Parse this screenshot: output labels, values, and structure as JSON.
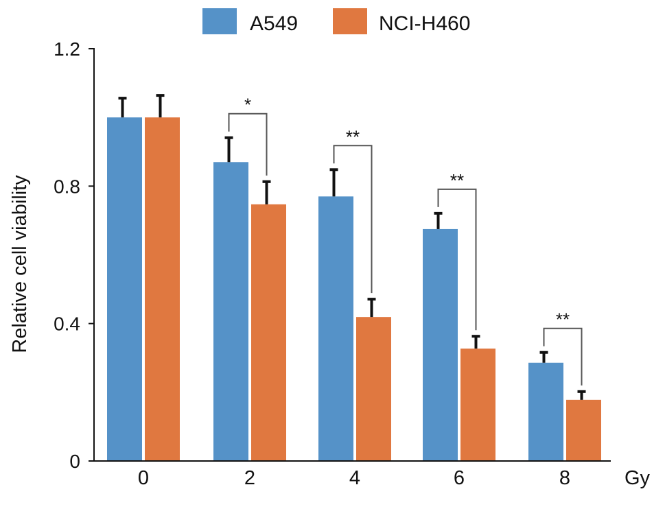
{
  "chart_data": {
    "type": "bar",
    "title": "",
    "xlabel": "Gy",
    "ylabel": "Relative cell viability",
    "categories": [
      "0",
      "2",
      "4",
      "6",
      "8"
    ],
    "ylim": [
      0,
      1.2
    ],
    "yticks": [
      "0",
      "0.4",
      "0.8",
      "1.2"
    ],
    "ytick_values": [
      0,
      0.4,
      0.8,
      1.2
    ],
    "legend_position": "top-center",
    "series": [
      {
        "name": "A549",
        "color": "#5592c8",
        "values": [
          1.0,
          0.87,
          0.77,
          0.675,
          0.286
        ],
        "errors": [
          0.058,
          0.073,
          0.08,
          0.048,
          0.032
        ]
      },
      {
        "name": "NCI-H460",
        "color": "#e07840",
        "values": [
          1.0,
          0.747,
          0.419,
          0.327,
          0.178
        ],
        "errors": [
          0.066,
          0.068,
          0.054,
          0.038,
          0.026
        ]
      }
    ],
    "significance": [
      {
        "category": "2",
        "label": "*"
      },
      {
        "category": "4",
        "label": "**"
      },
      {
        "category": "6",
        "label": "**"
      },
      {
        "category": "8",
        "label": "**"
      }
    ]
  }
}
